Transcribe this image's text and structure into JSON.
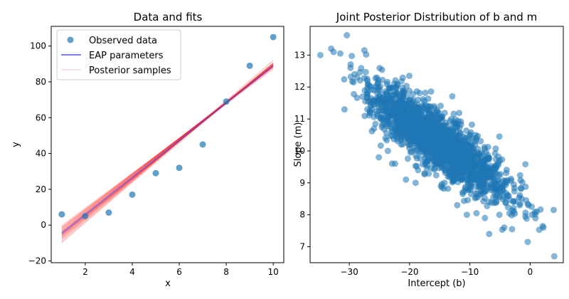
{
  "chart_data": [
    {
      "type": "scatter",
      "title": "Data and fits",
      "xlabel": "x",
      "ylabel": "y",
      "xlim": [
        0.55,
        10.45
      ],
      "ylim": [
        -21,
        111
      ],
      "xticks": [
        2,
        4,
        6,
        8,
        10
      ],
      "yticks": [
        -20,
        0,
        20,
        40,
        60,
        80,
        100
      ],
      "grid": false,
      "legend_position": "top-left",
      "legend": [
        "Observed data",
        "EAP parameters",
        "Posterior samples"
      ],
      "observed": {
        "name": "Observed data",
        "color": "#1f77b4",
        "x": [
          1,
          2,
          3,
          4,
          5,
          6,
          7,
          8,
          9,
          10
        ],
        "y": [
          6,
          5,
          7,
          17,
          29,
          32,
          45,
          69,
          89,
          105
        ]
      },
      "eap_fit": {
        "name": "EAP parameters",
        "color": "#5555ee",
        "intercept": -15.0,
        "slope": 10.4
      },
      "posterior_samples": {
        "name": "Posterior samples",
        "color": "#ff0000",
        "opacity": 0.12,
        "intercepts": [
          -18.5,
          -17.2,
          -16.0,
          -15.1,
          -14.0,
          -13.0,
          -12.0,
          -11.2,
          -19.6,
          -20.3,
          -10.5,
          -16.8,
          -14.6,
          -13.4,
          -17.9,
          -12.6,
          -15.7,
          -21.0,
          -9.8,
          -16.3,
          -14.9,
          -18.1,
          -11.7,
          -13.9,
          -15.4,
          -17.5,
          -12.2,
          -19.0,
          -14.3,
          -16.6,
          -10.9,
          -20.8,
          -13.7,
          -15.9,
          -18.8,
          -11.4,
          -16.1,
          -14.1,
          -12.9,
          -17.0
        ],
        "slopes": [
          10.9,
          10.7,
          10.5,
          10.4,
          10.3,
          10.2,
          10.05,
          9.95,
          11.0,
          11.2,
          9.8,
          10.6,
          10.35,
          10.25,
          10.8,
          10.15,
          10.45,
          11.3,
          9.7,
          10.55,
          10.45,
          10.85,
          10.0,
          10.3,
          10.4,
          10.75,
          10.1,
          10.95,
          10.3,
          10.6,
          9.9,
          11.1,
          10.25,
          10.5,
          10.9,
          9.95,
          10.55,
          10.4,
          10.2,
          10.7
        ]
      }
    },
    {
      "type": "scatter",
      "title": "Joint Posterior Distribution of b and m",
      "xlabel": "Intercept (b)",
      "ylabel": "Slope (m)",
      "xlim": [
        -36.5,
        5.5
      ],
      "ylim": [
        6.5,
        13.9
      ],
      "xticks": [
        -30,
        -20,
        -10,
        0
      ],
      "yticks": [
        7,
        8,
        9,
        10,
        11,
        12,
        13
      ],
      "grid": false,
      "color": "#1f77b4",
      "opacity": 0.55,
      "sample_count": 2000,
      "points": {
        "b": [
          -34.8,
          -33.0,
          -32.6,
          -31.5,
          -30.4,
          -29.8,
          -30.8,
          -28.7,
          -27.5,
          -29.3,
          -26.9,
          -27.8,
          -24.0,
          -25.9,
          -23.6,
          -22.4,
          -25.1,
          -20.6,
          -22.9,
          -17.5,
          -19.0,
          -14.8,
          -12.1,
          -10.5,
          -8.9,
          -7.5,
          -6.8,
          -5.1,
          -4.3,
          -3.0,
          -2.7,
          -1.4,
          -0.8,
          -0.3,
          0.3,
          1.1,
          2.2,
          3.9,
          4.0,
          -0.4,
          -5.6,
          -9.8,
          -14.2,
          -18.6,
          -24.8,
          -27.0,
          -21.4,
          -16.9,
          -12.6,
          -8.2
        ],
        "m": [
          13.0,
          13.2,
          13.1,
          13.05,
          13.62,
          12.6,
          11.3,
          12.3,
          13.15,
          12.15,
          12.1,
          11.7,
          10.4,
          10.7,
          10.0,
          9.6,
          9.8,
          9.1,
          9.6,
          9.3,
          9.0,
          8.9,
          8.3,
          8.0,
          8.05,
          7.9,
          7.4,
          8.0,
          7.6,
          7.55,
          8.1,
          8.5,
          7.95,
          8.3,
          8.0,
          8.1,
          7.6,
          8.15,
          6.7,
          7.15,
          8.6,
          8.65,
          9.0,
          9.4,
          11.0,
          11.8,
          10.2,
          9.7,
          9.2,
          8.9
        ]
      }
    }
  ]
}
